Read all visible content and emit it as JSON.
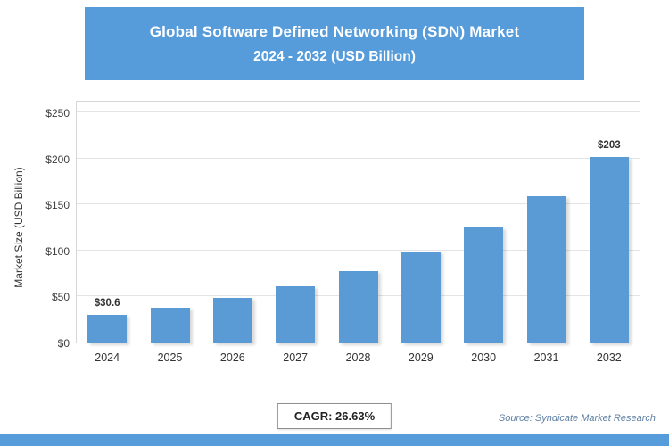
{
  "header": {
    "title_line1": "Global Software Defined Networking (SDN) Market",
    "title_line2": "2024 - 2032 (USD Billion)"
  },
  "chart_data": {
    "type": "bar",
    "title": "Global Software Defined Networking (SDN) Market 2024 - 2032 (USD Billion)",
    "categories": [
      "2024",
      "2025",
      "2026",
      "2027",
      "2028",
      "2029",
      "2030",
      "2031",
      "2032"
    ],
    "values": [
      30.6,
      38.7,
      49.1,
      62.1,
      78.7,
      99.6,
      126.1,
      159.7,
      203
    ],
    "data_labels": [
      "$30.6",
      null,
      null,
      null,
      null,
      null,
      null,
      null,
      "$203"
    ],
    "xlabel": "",
    "ylabel": "Market Size (USD Billion)",
    "ylim": [
      0,
      250
    ],
    "ytick_values": [
      0,
      50,
      100,
      150,
      200,
      250
    ],
    "ytick_labels": [
      "$0",
      "$50",
      "$100",
      "$150",
      "$200",
      "$250"
    ],
    "grid": true,
    "legend": false,
    "bar_color": "#5B9BD5"
  },
  "footer": {
    "cagr_label": "CAGR: 26.63%",
    "source_text": "Source: Syndicate Market Research"
  },
  "colors": {
    "accent_blue": "#579CDA",
    "bar_blue": "#5B9BD5",
    "gridline": "#e4e4e4"
  }
}
